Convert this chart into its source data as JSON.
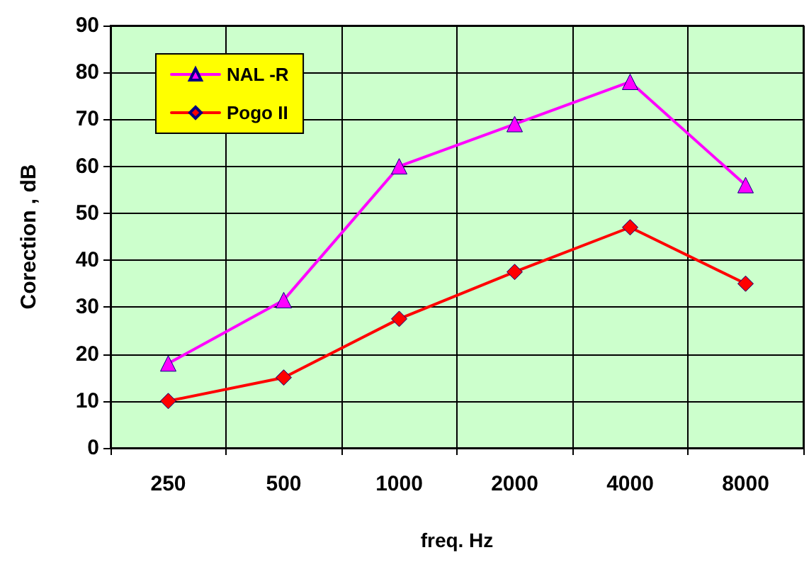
{
  "chart_data": {
    "type": "line",
    "xlabel": "freq. Hz",
    "ylabel": "Corection , dB",
    "categories": [
      "250",
      "500",
      "1000",
      "2000",
      "4000",
      "8000"
    ],
    "series": [
      {
        "name": "NAL -R",
        "color": "#ff00ff",
        "marker": "triangle",
        "values": [
          18,
          31.5,
          60,
          69,
          78,
          56
        ]
      },
      {
        "name": "Pogo II",
        "color": "#ff0000",
        "marker": "diamond",
        "values": [
          10,
          15,
          27.5,
          37.5,
          47,
          35
        ]
      }
    ],
    "ylim": [
      0,
      90
    ],
    "yticks": [
      0,
      10,
      20,
      30,
      40,
      50,
      60,
      70,
      80,
      90
    ],
    "grid": true,
    "legend": "top left",
    "line_style": "solid"
  }
}
